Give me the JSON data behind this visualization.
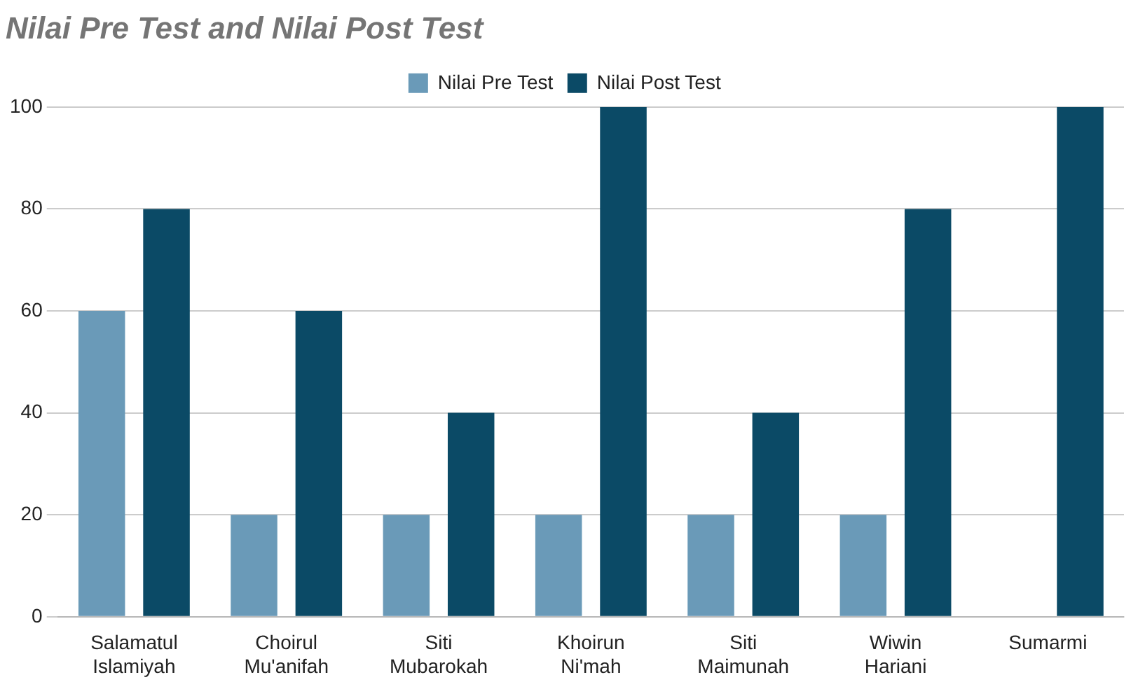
{
  "chart_data": {
    "type": "bar",
    "title": "Nilai Pre Test and Nilai Post Test",
    "categories": [
      "Salamatul Islamiyah",
      "Choirul Mu'anifah",
      "Siti Mubarokah",
      "Khoirun Ni'mah",
      "Siti Maimunah",
      "Wiwin Hariani",
      "Sumarmi"
    ],
    "series": [
      {
        "name": "Nilai Pre Test",
        "color": "#6a9ab8",
        "values": [
          60,
          20,
          20,
          20,
          20,
          20,
          0
        ]
      },
      {
        "name": "Nilai Post Test",
        "color": "#0b4a66",
        "values": [
          80,
          60,
          40,
          100,
          40,
          80,
          100
        ]
      }
    ],
    "ylim": [
      0,
      100
    ],
    "yticks": [
      0,
      20,
      40,
      60,
      80,
      100
    ],
    "grid": "y",
    "legend": "top"
  }
}
